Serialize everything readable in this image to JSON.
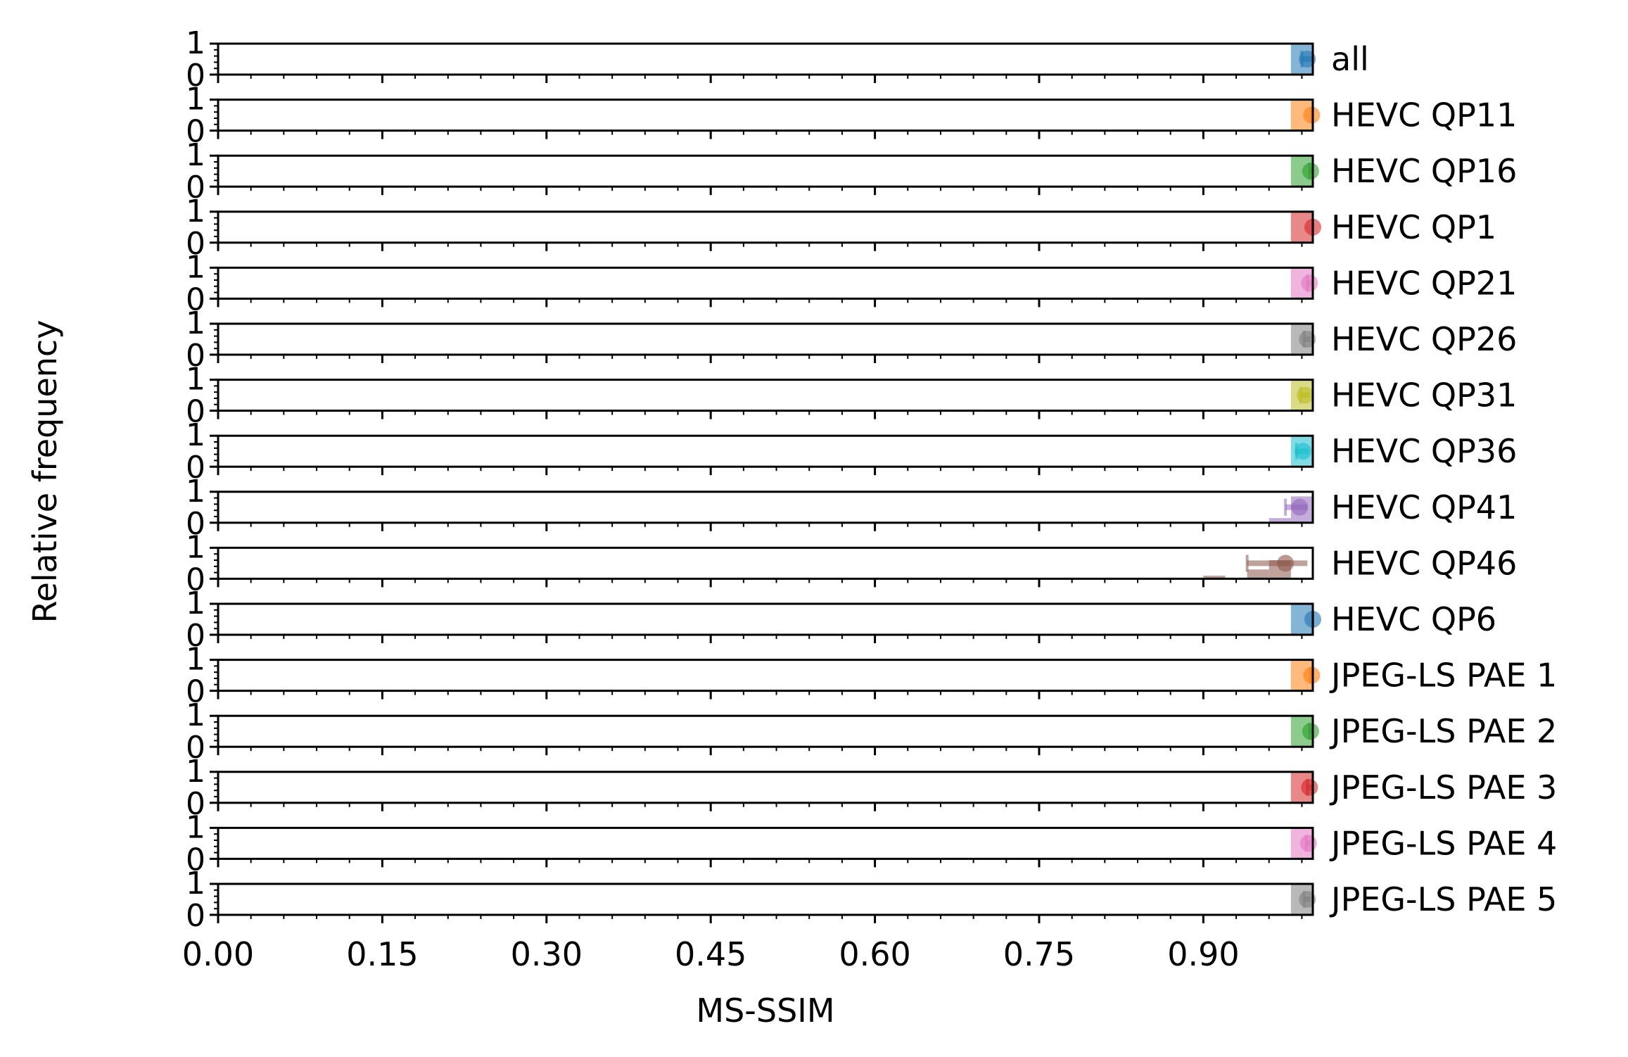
{
  "chart_data": {
    "type": "bar",
    "title": "",
    "xlabel": "MS-SSIM",
    "ylabel": "Relative frequency",
    "xlim": [
      0,
      1
    ],
    "ylim": [
      0,
      1
    ],
    "x_ticks": [
      "0.00",
      "0.15",
      "0.30",
      "0.45",
      "0.60",
      "0.75",
      "0.90"
    ],
    "y_ticks": [
      "0",
      "1"
    ],
    "grid": false,
    "bin_width": 0.02,
    "series": [
      {
        "name": "all",
        "color": "#1f77b4",
        "mean": 0.995,
        "err_low": 0.99,
        "err_high": 1.0,
        "bins": [
          {
            "x": 0.98,
            "freq": 1.0
          }
        ]
      },
      {
        "name": "HEVC QP11",
        "color": "#ff7f0e",
        "mean": 0.999,
        "err_low": 0.999,
        "err_high": 1.0,
        "bins": [
          {
            "x": 0.98,
            "freq": 1.0
          }
        ]
      },
      {
        "name": "HEVC QP16",
        "color": "#2ca02c",
        "mean": 0.998,
        "err_low": 0.997,
        "err_high": 0.999,
        "bins": [
          {
            "x": 0.98,
            "freq": 1.0
          }
        ]
      },
      {
        "name": "HEVC QP1",
        "color": "#d62728",
        "mean": 1.0,
        "err_low": 1.0,
        "err_high": 1.0,
        "bins": [
          {
            "x": 0.98,
            "freq": 1.0
          }
        ]
      },
      {
        "name": "HEVC QP21",
        "color": "#e377c2",
        "mean": 0.997,
        "err_low": 0.995,
        "err_high": 0.999,
        "bins": [
          {
            "x": 0.98,
            "freq": 1.0
          }
        ]
      },
      {
        "name": "HEVC QP26",
        "color": "#7f7f7f",
        "mean": 0.995,
        "err_low": 0.992,
        "err_high": 0.998,
        "bins": [
          {
            "x": 0.98,
            "freq": 1.0
          }
        ]
      },
      {
        "name": "HEVC QP31",
        "color": "#bcbd22",
        "mean": 0.993,
        "err_low": 0.989,
        "err_high": 0.997,
        "bins": [
          {
            "x": 0.98,
            "freq": 1.0
          }
        ]
      },
      {
        "name": "HEVC QP36",
        "color": "#17becf",
        "mean": 0.991,
        "err_low": 0.985,
        "err_high": 0.996,
        "bins": [
          {
            "x": 0.98,
            "freq": 1.0
          }
        ]
      },
      {
        "name": "HEVC QP41",
        "color": "#9467bd",
        "mean": 0.988,
        "err_low": 0.975,
        "err_high": 0.995,
        "bins": [
          {
            "x": 0.96,
            "freq": 0.15
          },
          {
            "x": 0.98,
            "freq": 0.85
          }
        ]
      },
      {
        "name": "HEVC QP46",
        "color": "#8c564b",
        "mean": 0.975,
        "err_low": 0.94,
        "err_high": 0.995,
        "bins": [
          {
            "x": 0.9,
            "freq": 0.1
          },
          {
            "x": 0.94,
            "freq": 0.3
          },
          {
            "x": 0.96,
            "freq": 0.6
          }
        ]
      },
      {
        "name": "HEVC QP6",
        "color": "#1f77b4",
        "mean": 1.0,
        "err_low": 1.0,
        "err_high": 1.0,
        "bins": [
          {
            "x": 0.98,
            "freq": 1.0
          }
        ]
      },
      {
        "name": "JPEG-LS PAE 1",
        "color": "#ff7f0e",
        "mean": 0.999,
        "err_low": 0.998,
        "err_high": 1.0,
        "bins": [
          {
            "x": 0.98,
            "freq": 1.0
          }
        ]
      },
      {
        "name": "JPEG-LS PAE 2",
        "color": "#2ca02c",
        "mean": 0.998,
        "err_low": 0.997,
        "err_high": 0.999,
        "bins": [
          {
            "x": 0.98,
            "freq": 1.0
          }
        ]
      },
      {
        "name": "JPEG-LS PAE 3",
        "color": "#d62728",
        "mean": 0.997,
        "err_low": 0.995,
        "err_high": 0.999,
        "bins": [
          {
            "x": 0.98,
            "freq": 1.0
          }
        ]
      },
      {
        "name": "JPEG-LS PAE 4",
        "color": "#e377c2",
        "mean": 0.996,
        "err_low": 0.994,
        "err_high": 0.998,
        "bins": [
          {
            "x": 0.98,
            "freq": 1.0
          }
        ]
      },
      {
        "name": "JPEG-LS PAE 5",
        "color": "#7f7f7f",
        "mean": 0.995,
        "err_low": 0.992,
        "err_high": 0.998,
        "bins": [
          {
            "x": 0.98,
            "freq": 1.0
          }
        ]
      }
    ]
  }
}
